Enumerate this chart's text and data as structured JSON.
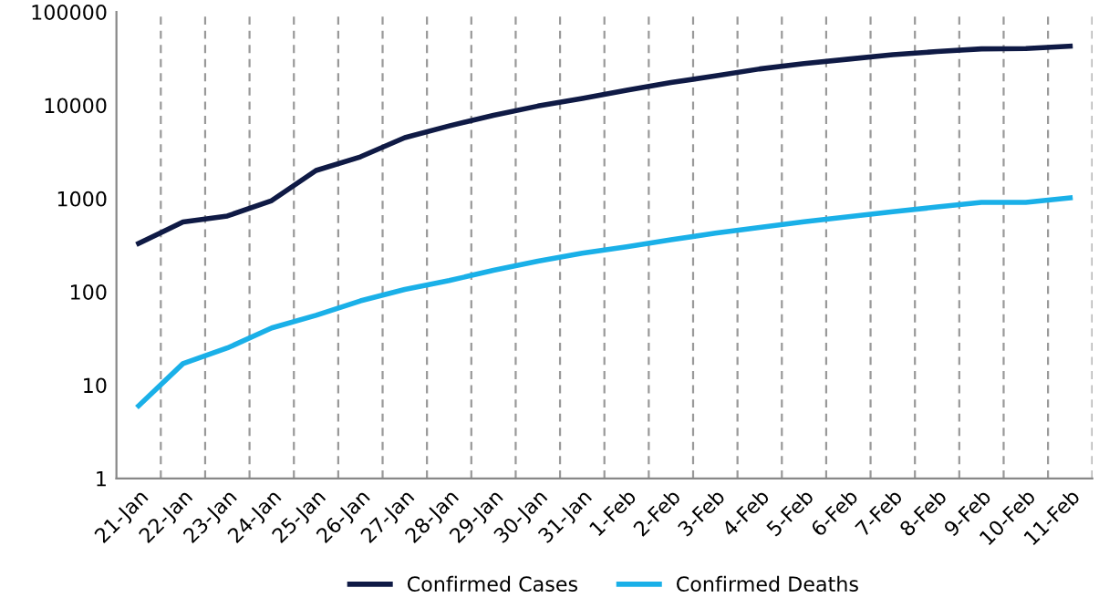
{
  "chart_data": {
    "type": "line",
    "categories": [
      "21-Jan",
      "22-Jan",
      "23-Jan",
      "24-Jan",
      "25-Jan",
      "26-Jan",
      "27-Jan",
      "28-Jan",
      "29-Jan",
      "30-Jan",
      "31-Jan",
      "1-Feb",
      "2-Feb",
      "3-Feb",
      "4-Feb",
      "5-Feb",
      "6-Feb",
      "7-Feb",
      "8-Feb",
      "9-Feb",
      "10-Feb",
      "11-Feb"
    ],
    "series": [
      {
        "name": "Confirmed Cases",
        "color": "#0f1a45",
        "values": [
          330,
          560,
          650,
          950,
          2000,
          2800,
          4500,
          6000,
          7800,
          9800,
          11800,
          14500,
          17500,
          20600,
          24500,
          28000,
          31200,
          34800,
          37600,
          40200,
          40600,
          43000
        ]
      },
      {
        "name": "Confirmed Deaths",
        "color": "#1ab0e8",
        "values": [
          6,
          17,
          25,
          41,
          56,
          80,
          106,
          132,
          170,
          213,
          259,
          304,
          361,
          425,
          490,
          563,
          637,
          722,
          811,
          908,
          910,
          1017
        ]
      }
    ],
    "log": true,
    "ylim": [
      1,
      100000
    ],
    "yticks": [
      1,
      10,
      100,
      1000,
      10000,
      100000
    ],
    "grid": "x",
    "legend": "bottom",
    "marker": "none",
    "line_style": "solid"
  }
}
